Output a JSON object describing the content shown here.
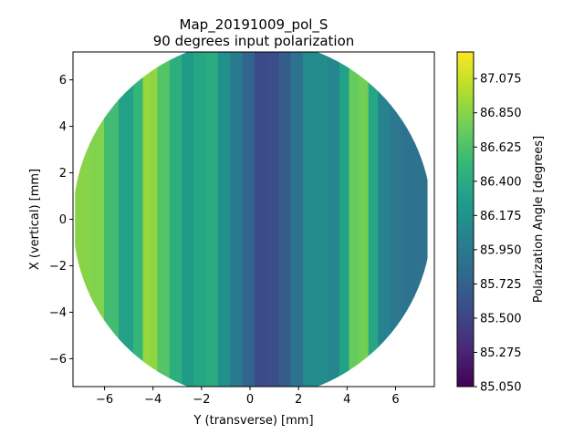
{
  "chart_data": {
    "type": "heatmap",
    "title": "Map_20191009_pol_S",
    "subtitle": "90 degrees input polarization",
    "xlabel": "Y (transverse) [mm]",
    "ylabel": "X (vertical) [mm]",
    "xlim": [
      -7.3,
      7.6
    ],
    "ylim": [
      -7.2,
      7.2
    ],
    "xticks": [
      -6,
      -4,
      -2,
      0,
      2,
      4,
      6
    ],
    "xtick_labels": [
      "−6",
      "−4",
      "−2",
      "0",
      "2",
      "4",
      "6"
    ],
    "yticks": [
      -6,
      -4,
      -2,
      0,
      2,
      4,
      6
    ],
    "ytick_labels": [
      "−6",
      "−4",
      "−2",
      "0",
      "2",
      "4",
      "6"
    ],
    "colorbar": {
      "label": "Polarization Angle [degrees]",
      "min": 85.05,
      "max": 87.25,
      "ticks": [
        85.05,
        85.275,
        85.5,
        85.725,
        85.95,
        86.175,
        86.4,
        86.625,
        86.85,
        87.075
      ],
      "tick_labels": [
        "85.050",
        "85.275",
        "85.500",
        "85.725",
        "85.950",
        "86.175",
        "86.400",
        "86.625",
        "86.850",
        "87.075"
      ],
      "colormap": "viridis"
    },
    "map_region": "circular, radius ~7.3 mm",
    "column_profile": {
      "y": [
        -7.2,
        -6.6,
        -6.0,
        -5.4,
        -4.8,
        -4.4,
        -4.1,
        -3.8,
        -3.3,
        -2.8,
        -2.3,
        -1.8,
        -1.3,
        -0.8,
        -0.3,
        0.2,
        0.7,
        1.2,
        1.7,
        2.2,
        2.7,
        3.2,
        3.7,
        4.1,
        4.5,
        4.9,
        5.3,
        5.8,
        6.3,
        6.8,
        7.3
      ],
      "angle": [
        86.8,
        86.9,
        86.75,
        86.4,
        86.2,
        86.8,
        87.0,
        86.75,
        86.55,
        86.3,
        86.2,
        86.5,
        86.3,
        86.0,
        85.9,
        85.6,
        85.5,
        85.65,
        85.75,
        86.0,
        86.2,
        86.05,
        86.1,
        86.5,
        86.95,
        86.6,
        86.1,
        85.95,
        85.9,
        85.85,
        85.9
      ]
    },
    "grid": false
  }
}
